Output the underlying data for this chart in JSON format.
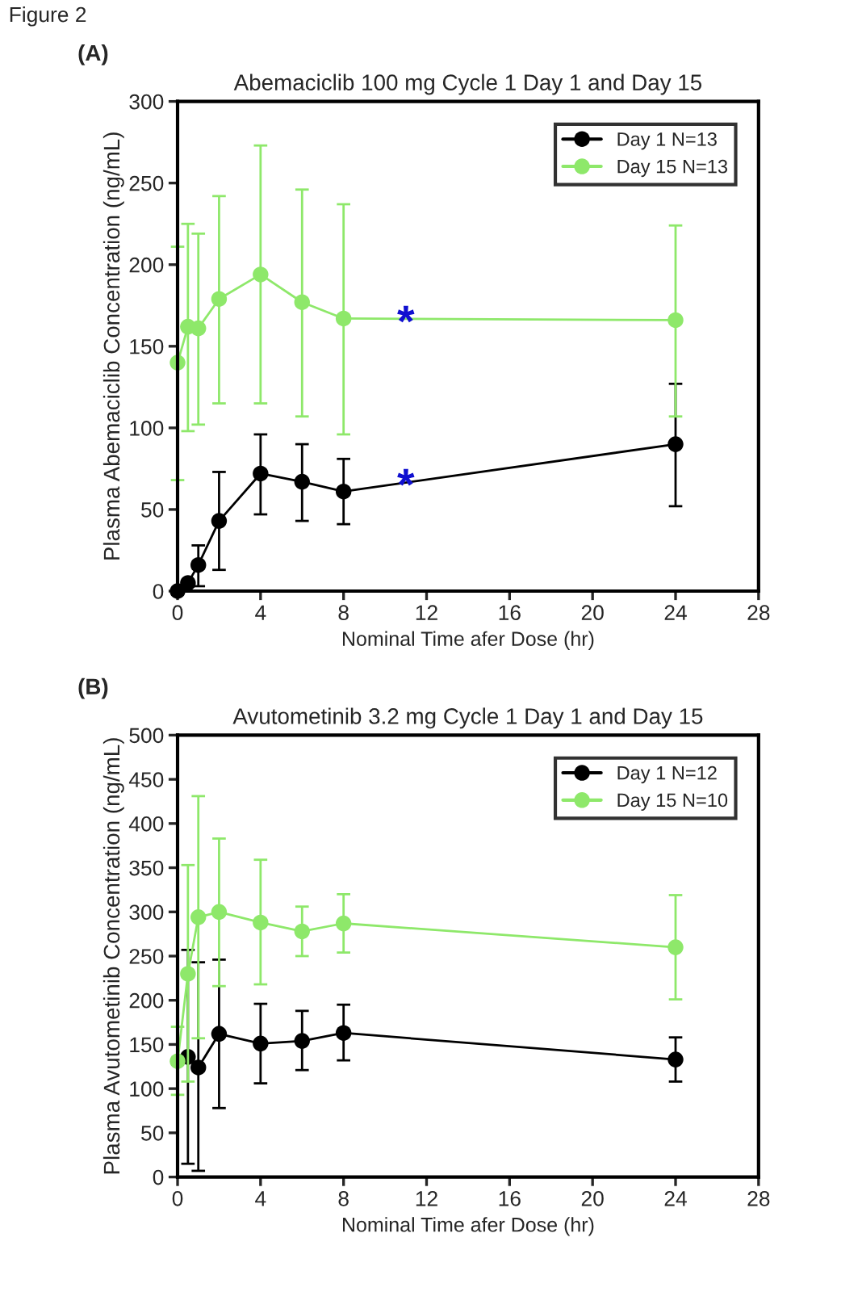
{
  "chart_data": [
    {
      "type": "line",
      "title": "Abemaciclib 100 mg Cycle 1 Day 1 and Day 15",
      "xlabel": "Nominal Time afer Dose (hr)",
      "ylabel": "Plasma Abemaciclib Concentration (ng/mL)",
      "annotations": [
        "Figure 2",
        "(A)",
        {
          "text": "*",
          "x": 11,
          "y": 163
        },
        {
          "text": "*",
          "x": 11,
          "y": 63
        }
      ],
      "x": [
        0,
        0.5,
        1,
        2,
        4,
        6,
        8,
        24
      ],
      "series": [
        {
          "name": "Day 1 N=13",
          "color": "#000000",
          "values": [
            0,
            5,
            16,
            43,
            72,
            67,
            61,
            90
          ],
          "errors": [
            null,
            null,
            [
              3,
              28
            ],
            [
              13,
              73
            ],
            [
              47,
              96
            ],
            [
              43,
              90
            ],
            [
              41,
              81
            ],
            [
              52,
              127
            ]
          ]
        },
        {
          "name": "Day 15 N=13",
          "color": "#8ee86a",
          "values": [
            140,
            162,
            161,
            179,
            194,
            177,
            167,
            166
          ],
          "errors": [
            [
              68,
              211
            ],
            [
              98,
              225
            ],
            [
              102,
              219
            ],
            [
              115,
              242
            ],
            [
              115,
              273
            ],
            [
              107,
              246
            ],
            [
              96,
              237
            ],
            [
              107,
              224
            ]
          ]
        }
      ],
      "xlim": [
        0,
        28
      ],
      "xticks": [
        0,
        4,
        8,
        12,
        16,
        20,
        24,
        28
      ],
      "ylim": [
        0,
        300
      ],
      "yticks": [
        0,
        50,
        100,
        150,
        200,
        250,
        300
      ],
      "legend": "top right",
      "marker": "circle",
      "line_style": "solid",
      "grid": false
    },
    {
      "type": "line",
      "title": "Avutometinib 3.2 mg Cycle 1 Day 1 and Day 15",
      "xlabel": "Nominal Time afer Dose (hr)",
      "ylabel": "Plasma Avutometinib Concentration (ng/mL)",
      "annotations": [
        "(B)"
      ],
      "x": [
        0,
        0.5,
        1,
        2,
        4,
        6,
        8,
        24
      ],
      "series": [
        {
          "name": "Day 1 N=12",
          "color": "#000000",
          "x": [
            0.5,
            1,
            2,
            4,
            6,
            8,
            24
          ],
          "values": [
            136,
            124,
            162,
            151,
            154,
            163,
            133
          ],
          "errors": [
            [
              15,
              257
            ],
            [
              7,
              243
            ],
            [
              78,
              246
            ],
            [
              106,
              196
            ],
            [
              121,
              188
            ],
            [
              132,
              195
            ],
            [
              108,
              158
            ]
          ]
        },
        {
          "name": "Day 15 N=10",
          "color": "#8ee86a",
          "values": [
            131,
            230,
            294,
            300,
            288,
            278,
            287,
            260
          ],
          "errors": [
            [
              93,
              170
            ],
            [
              108,
              353
            ],
            [
              157,
              431
            ],
            [
              216,
              383
            ],
            [
              218,
              359
            ],
            [
              250,
              306
            ],
            [
              254,
              320
            ],
            [
              201,
              319
            ]
          ]
        }
      ],
      "xlim": [
        0,
        28
      ],
      "xticks": [
        0,
        4,
        8,
        12,
        16,
        20,
        24,
        28
      ],
      "ylim": [
        0,
        500
      ],
      "yticks": [
        0,
        50,
        100,
        150,
        200,
        250,
        300,
        350,
        400,
        450,
        500
      ],
      "legend": "top right",
      "marker": "circle",
      "line_style": "solid",
      "grid": false
    }
  ]
}
